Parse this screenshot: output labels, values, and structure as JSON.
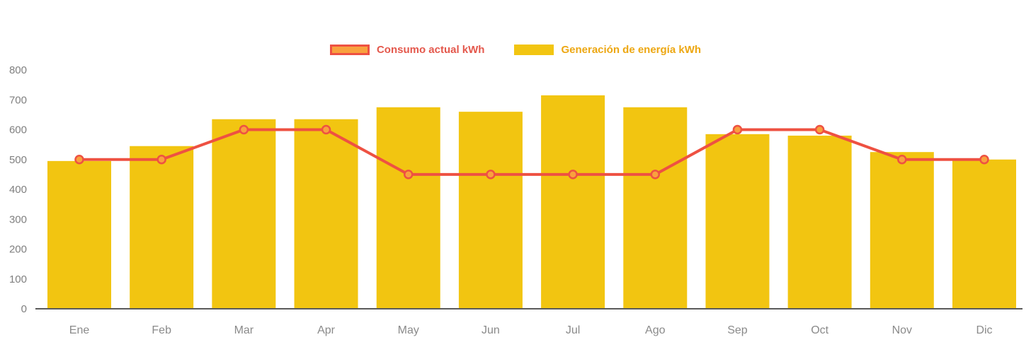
{
  "chart_data": {
    "type": "bar+line",
    "categories": [
      "Ene",
      "Feb",
      "Mar",
      "Apr",
      "May",
      "Jun",
      "Jul",
      "Ago",
      "Sep",
      "Oct",
      "Nov",
      "Dic"
    ],
    "series": [
      {
        "name": "Consumo actual kWh",
        "type": "line",
        "color": "#EE5142",
        "marker_fill": "#F9A13E",
        "label_color": "#E4584C",
        "values": [
          500,
          500,
          600,
          600,
          450,
          450,
          450,
          450,
          600,
          600,
          500,
          500
        ]
      },
      {
        "name": "Generación de energía kWh",
        "type": "bar",
        "color": "#F2C511",
        "label_color": "#EDA712",
        "values": [
          495,
          545,
          635,
          635,
          675,
          660,
          715,
          675,
          585,
          580,
          525,
          500
        ]
      }
    ],
    "ylim": [
      0,
      800
    ],
    "ytick_step": 100,
    "ytick_labels": [
      "0",
      "100",
      "200",
      "300",
      "400",
      "500",
      "600",
      "700",
      "800"
    ],
    "grid": false,
    "legend_position": "top",
    "axis_color": "#5A5A5A",
    "tick_label_color": "#7F7F7F",
    "x_label_color": "#8A8A8A"
  }
}
